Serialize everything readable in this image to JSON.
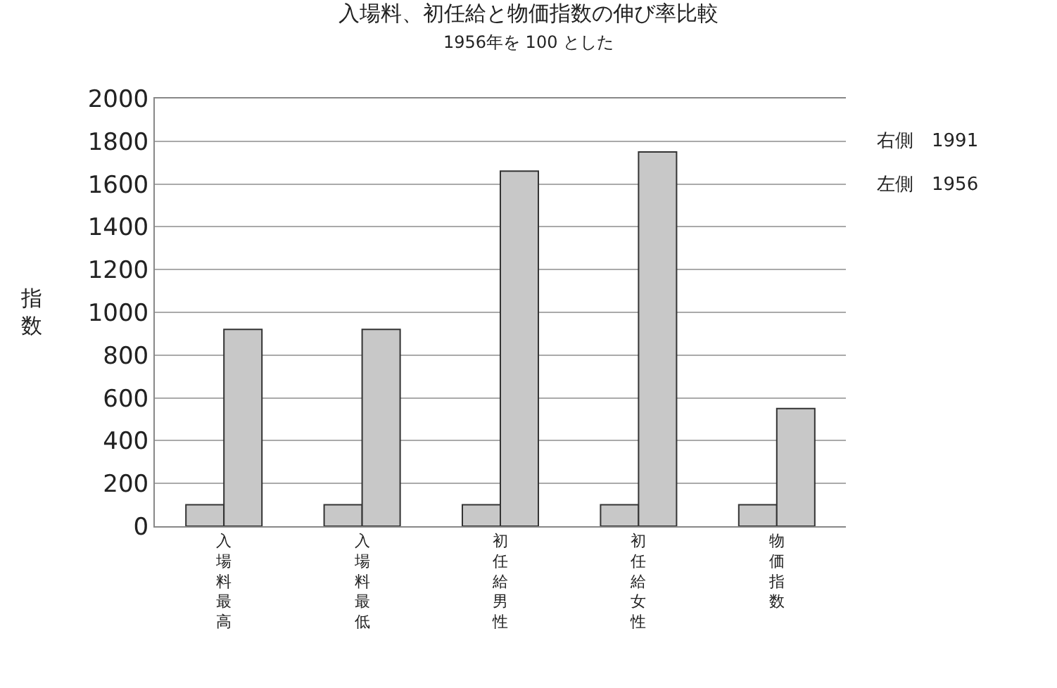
{
  "chart_data": {
    "type": "bar",
    "title": "入場料、初任給と物価指数の伸び率比較",
    "subtitle": "1956年を 100 とした",
    "ylabel": "指数",
    "categories": [
      "入場料最高",
      "入場料最低",
      "初任給男性",
      "初任給女性",
      "物価指数"
    ],
    "series": [
      {
        "color": "#c8c8c8",
        "values": [
          100,
          100,
          100,
          100,
          100
        ]
      },
      {
        "color": "#c8c8c8",
        "values": [
          920,
          920,
          1660,
          1750,
          550
        ]
      }
    ],
    "annotations": [
      "右側　1991",
      "左側　1956"
    ],
    "ylim": [
      0,
      2000
    ],
    "yticks": [
      0,
      200,
      400,
      600,
      800,
      1000,
      1200,
      1400,
      1600,
      1800,
      2000
    ],
    "grid": "y"
  }
}
